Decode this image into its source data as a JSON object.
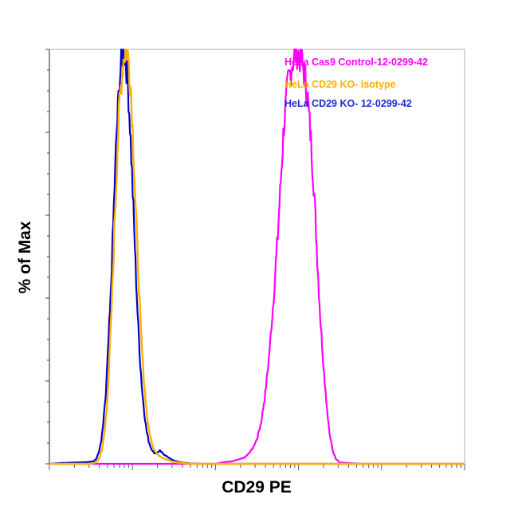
{
  "chart_data": {
    "type": "area",
    "title": "",
    "xlabel": "CD29 PE",
    "ylabel": "% of Max",
    "x_scale": "log",
    "xlim": [
      0,
      100
    ],
    "ylim": [
      0,
      100
    ],
    "grid": false,
    "legend_position": "top-right",
    "series": [
      {
        "name": "HeLa Cas9 Control-12-0299-42",
        "color": "#ff00ff",
        "points": [
          [
            0,
            0
          ],
          [
            15,
            0
          ],
          [
            35,
            0
          ],
          [
            40,
            0
          ],
          [
            42,
            0.4
          ],
          [
            44,
            0.6
          ],
          [
            46,
            1.2
          ],
          [
            47,
            1.5
          ],
          [
            48,
            2.5
          ],
          [
            49,
            3.8
          ],
          [
            50,
            6
          ],
          [
            51,
            10
          ],
          [
            52,
            17
          ],
          [
            53,
            27
          ],
          [
            54,
            40
          ],
          [
            55,
            55
          ],
          [
            55.7,
            68
          ],
          [
            56.5,
            82
          ],
          [
            57.5,
            92
          ],
          [
            58.5,
            97
          ],
          [
            59.5,
            100
          ],
          [
            60.5,
            98
          ],
          [
            61.5,
            94
          ],
          [
            62.2,
            88
          ],
          [
            63,
            78
          ],
          [
            63.8,
            65
          ],
          [
            64.5,
            50
          ],
          [
            65.2,
            36
          ],
          [
            66,
            24
          ],
          [
            66.8,
            14
          ],
          [
            67.5,
            7
          ],
          [
            68.3,
            3
          ],
          [
            69,
            1.2
          ],
          [
            70,
            0.3
          ],
          [
            75,
            0
          ],
          [
            100,
            0
          ]
        ]
      },
      {
        "name": "HeLa CD29 KO- Isotype",
        "color": "#ffb000",
        "points": [
          [
            0,
            0
          ],
          [
            10,
            0
          ],
          [
            11,
            0.3
          ],
          [
            11.6,
            0.7
          ],
          [
            12.1,
            1.6
          ],
          [
            12.7,
            3.6
          ],
          [
            13.2,
            7
          ],
          [
            13.8,
            13
          ],
          [
            14.3,
            22
          ],
          [
            14.8,
            33
          ],
          [
            15.3,
            46
          ],
          [
            15.8,
            61
          ],
          [
            16.4,
            76
          ],
          [
            16.9,
            87
          ],
          [
            17.5,
            95
          ],
          [
            18,
            99
          ],
          [
            18.6,
            100
          ],
          [
            19.1,
            97
          ],
          [
            19.7,
            89
          ],
          [
            20.2,
            77
          ],
          [
            20.7,
            64
          ],
          [
            21.2,
            51
          ],
          [
            21.7,
            39
          ],
          [
            22.2,
            29
          ],
          [
            22.7,
            21
          ],
          [
            23.2,
            15
          ],
          [
            23.7,
            10
          ],
          [
            24.2,
            7
          ],
          [
            24.7,
            5
          ],
          [
            25.2,
            3.5
          ],
          [
            26,
            2.3
          ],
          [
            27,
            1.6
          ],
          [
            28,
            1.1
          ],
          [
            29.5,
            0.6
          ],
          [
            31,
            0.3
          ],
          [
            33,
            0.1
          ],
          [
            35,
            0
          ],
          [
            100,
            0
          ]
        ]
      },
      {
        "name": "HeLa CD29 KO- 12-0299-42",
        "color": "#0000cd",
        "points": [
          [
            0,
            0
          ],
          [
            3,
            0.2
          ],
          [
            6,
            0.3
          ],
          [
            9,
            0.4
          ],
          [
            10.6,
            0.6
          ],
          [
            11.3,
            1.2
          ],
          [
            11.9,
            2.8
          ],
          [
            12.5,
            5.5
          ],
          [
            13,
            10
          ],
          [
            13.6,
            17
          ],
          [
            14.1,
            27
          ],
          [
            14.7,
            39
          ],
          [
            15.2,
            53
          ],
          [
            15.7,
            67
          ],
          [
            16.2,
            80
          ],
          [
            16.8,
            91
          ],
          [
            17.3,
            97
          ],
          [
            17.8,
            100
          ],
          [
            18.4,
            98
          ],
          [
            18.9,
            92
          ],
          [
            19.4,
            82
          ],
          [
            19.9,
            70
          ],
          [
            20.4,
            57
          ],
          [
            20.9,
            44
          ],
          [
            21.4,
            33
          ],
          [
            21.9,
            24
          ],
          [
            22.4,
            17
          ],
          [
            22.9,
            12
          ],
          [
            23.4,
            8
          ],
          [
            23.9,
            5.5
          ],
          [
            24.4,
            4
          ],
          [
            24.9,
            3
          ],
          [
            25.4,
            2.5
          ],
          [
            26,
            2.7
          ],
          [
            26.6,
            3.2
          ],
          [
            27.2,
            2.6
          ],
          [
            27.9,
            2
          ],
          [
            28.6,
            1.6
          ],
          [
            29.3,
            1.1
          ],
          [
            30,
            0.8
          ],
          [
            31,
            0.5
          ],
          [
            32,
            0.3
          ],
          [
            34,
            0.1
          ],
          [
            36,
            0
          ],
          [
            100,
            0
          ]
        ]
      }
    ]
  },
  "legend": {
    "items": [
      "HeLa Cas9 Control-12-0299-42",
      "HeLa CD29 KO- Isotype",
      "HeLa CD29 KO- 12-0299-42"
    ]
  }
}
